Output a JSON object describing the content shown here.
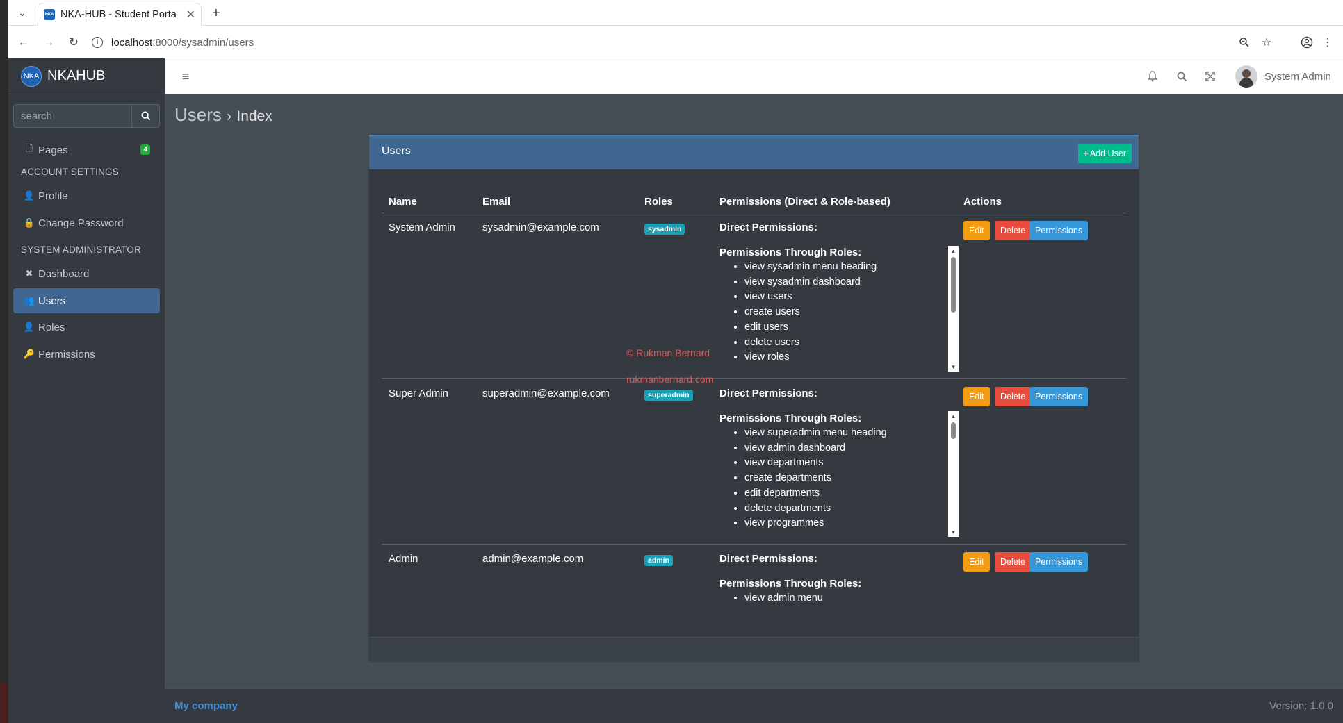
{
  "browser": {
    "tab_title": "NKA-HUB - Student Porta",
    "favicon_text": "NKA",
    "url_host": "localhost",
    "url_path": ":8000/sysadmin/users"
  },
  "brand": {
    "logo_text": "NKA",
    "name": "NKAHUB"
  },
  "topnav": {
    "user_name": "System Admin"
  },
  "sidebar": {
    "search_placeholder": "search",
    "pages_label": "Pages",
    "pages_badge": "4",
    "account_header": "ACCOUNT SETTINGS",
    "profile_label": "Profile",
    "change_password_label": "Change Password",
    "sysadmin_header": "SYSTEM ADMINISTRATOR",
    "dashboard_label": "Dashboard",
    "users_label": "Users",
    "roles_label": "Roles",
    "permissions_label": "Permissions"
  },
  "page": {
    "title": "Users",
    "separator": "›",
    "subtitle": "Index"
  },
  "card": {
    "title": "Users",
    "add_user_label": "Add User"
  },
  "table": {
    "headers": [
      "Name",
      "Email",
      "Roles",
      "Permissions (Direct & Role-based)",
      "Actions"
    ],
    "direct_label": "Direct Permissions:",
    "through_roles_label": "Permissions Through Roles:",
    "edit_label": "Edit",
    "delete_label": "Delete",
    "permissions_label": "Permissions",
    "rows": [
      {
        "name": "System Admin",
        "email": "sysadmin@example.com",
        "role": "sysadmin",
        "role_permissions": [
          "view sysadmin menu heading",
          "view sysadmin dashboard",
          "view users",
          "create users",
          "edit users",
          "delete users",
          "view roles"
        ]
      },
      {
        "name": "Super Admin",
        "email": "superadmin@example.com",
        "role": "superadmin",
        "role_permissions": [
          "view superadmin menu heading",
          "view admin dashboard",
          "view departments",
          "create departments",
          "edit departments",
          "delete departments",
          "view programmes"
        ]
      },
      {
        "name": "Admin",
        "email": "admin@example.com",
        "role": "admin",
        "role_permissions": [
          "view admin menu"
        ]
      }
    ]
  },
  "watermark": {
    "line1": "© Rukman Bernard",
    "line2": "rukmanbernard.com"
  },
  "footer": {
    "company": "My company",
    "version": "Version: 1.0.0"
  }
}
